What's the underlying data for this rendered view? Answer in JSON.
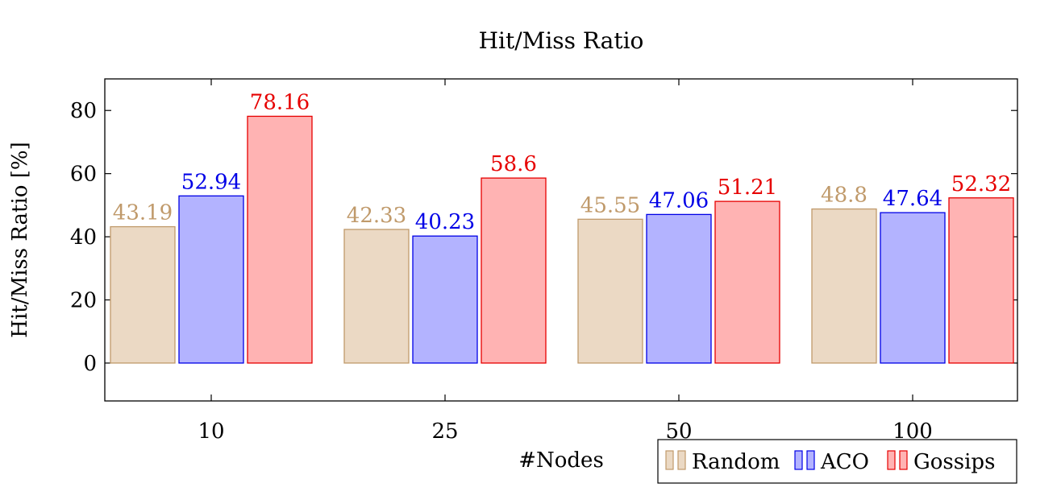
{
  "chart_data": {
    "type": "bar",
    "title": "Hit/Miss Ratio",
    "xlabel": "#Nodes",
    "ylabel": "Hit/Miss Ratio [%]",
    "categories": [
      "10",
      "25",
      "50",
      "100"
    ],
    "ylim": [
      -12,
      90
    ],
    "yticks": [
      0,
      20,
      40,
      60,
      80
    ],
    "grid": false,
    "legend_position": "bottom-right",
    "series": [
      {
        "name": "Random",
        "fill": "#ebd9c4",
        "stroke": "#c09a6b",
        "values": [
          43.19,
          42.33,
          45.55,
          48.8
        ]
      },
      {
        "name": "ACO",
        "fill": "#b3b3ff",
        "stroke": "#0000e6",
        "values": [
          52.94,
          40.23,
          47.06,
          47.64
        ]
      },
      {
        "name": "Gossips",
        "fill": "#ffb3b3",
        "stroke": "#e60000",
        "values": [
          78.16,
          58.6,
          51.21,
          52.32
        ]
      }
    ],
    "data_labels": [
      [
        "43.19",
        "42.33",
        "45.55",
        "48.8"
      ],
      [
        "52.94",
        "40.23",
        "47.06",
        "47.64"
      ],
      [
        "78.16",
        "58.6",
        "51.21",
        "52.32"
      ]
    ]
  }
}
